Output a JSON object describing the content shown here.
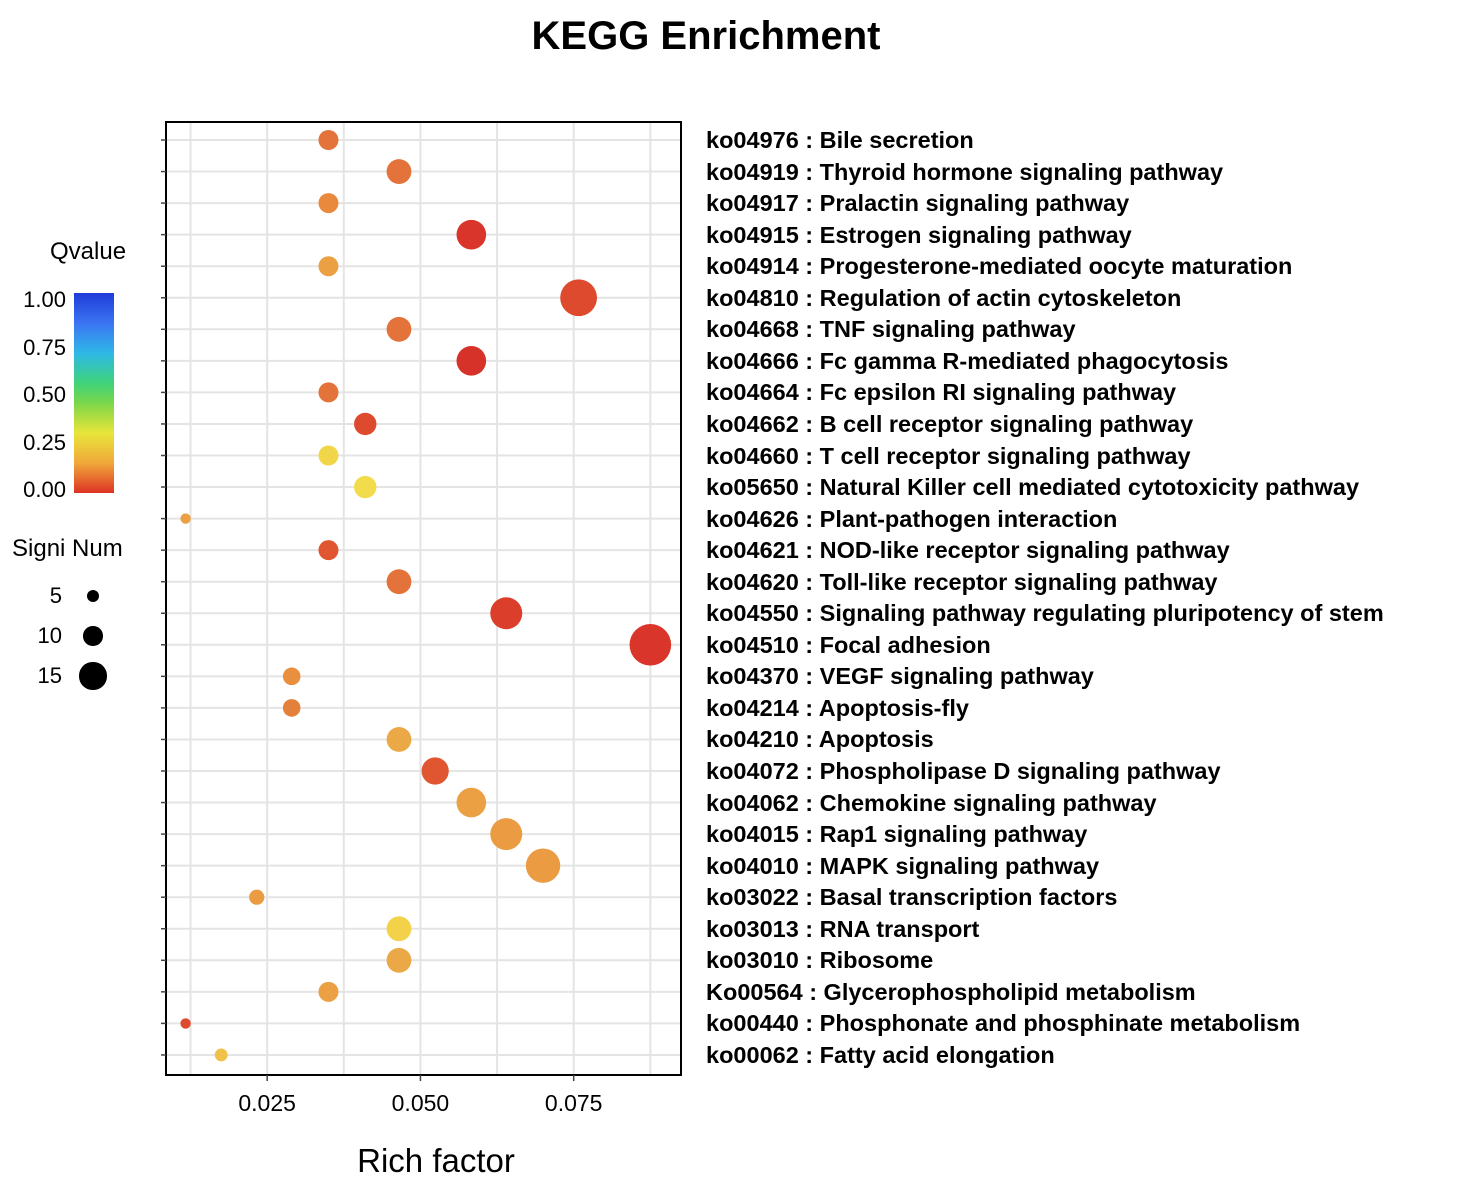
{
  "chart_data": {
    "type": "scatter",
    "title": "KEGG Enrichment",
    "xlabel": "Rich factor",
    "ylabel": "",
    "xlim": [
      0.0085,
      0.0925
    ],
    "xticks": [
      {
        "value": 0.025,
        "label": "0.025"
      },
      {
        "value": 0.05,
        "label": "0.050"
      },
      {
        "value": 0.075,
        "label": "0.075"
      }
    ],
    "grid": true,
    "color_legend": {
      "title": "Qvalue",
      "ticks": [
        "1.00",
        "0.75",
        "0.50",
        "0.25",
        "0.00"
      ],
      "colors": [
        "#1f3bd8",
        "#3b74f2",
        "#2fb8e8",
        "#3fd37a",
        "#7bd64a",
        "#e8e53a",
        "#f0a83a",
        "#dd3325"
      ]
    },
    "size_legend": {
      "title": "Signi Num",
      "entries": [
        {
          "label": "5",
          "value": 5
        },
        {
          "label": "10",
          "value": 10
        },
        {
          "label": "15",
          "value": 15
        }
      ]
    },
    "points": [
      {
        "term": "ko04976 : Bile secretion",
        "x": 0.035,
        "size": 5,
        "color": "#e3733a"
      },
      {
        "term": "ko04919 : Thyroid hormone signaling pathway",
        "x": 0.0465,
        "size": 7,
        "color": "#e3733a"
      },
      {
        "term": "ko04917 : Pralactin signaling pathway",
        "x": 0.035,
        "size": 5,
        "color": "#e8893e"
      },
      {
        "term": "ko04915 : Estrogen signaling pathway",
        "x": 0.0583,
        "size": 9,
        "color": "#d9352a"
      },
      {
        "term": "ko04914 : Progesterone-mediated oocyte maturation",
        "x": 0.035,
        "size": 5,
        "color": "#eba043"
      },
      {
        "term": "ko04810 : Regulation of actin cytoskeleton",
        "x": 0.0758,
        "size": 12,
        "color": "#dd4a2e"
      },
      {
        "term": "ko04668 : TNF signaling pathway",
        "x": 0.0465,
        "size": 7,
        "color": "#e3733a"
      },
      {
        "term": "ko04666 : Fc gamma R-mediated phagocytosis",
        "x": 0.0583,
        "size": 9,
        "color": "#d6322a"
      },
      {
        "term": "ko04664 : Fc epsilon RI signaling pathway",
        "x": 0.035,
        "size": 5,
        "color": "#e3733a"
      },
      {
        "term": "ko04662 : B cell receptor signaling pathway",
        "x": 0.041,
        "size": 6,
        "color": "#dd4a2e"
      },
      {
        "term": "ko04660 : T cell receptor signaling pathway",
        "x": 0.035,
        "size": 5,
        "color": "#f1d64a"
      },
      {
        "term": "ko05650 : Natural Killer cell mediated cytotoxicity pathway",
        "x": 0.041,
        "size": 6,
        "color": "#f3dc4c"
      },
      {
        "term": "ko04626 : Plant-pathogen interaction",
        "x": 0.0117,
        "size": 1,
        "color": "#eba043"
      },
      {
        "term": "ko04621 : NOD-like receptor signaling pathway",
        "x": 0.035,
        "size": 5,
        "color": "#df5630"
      },
      {
        "term": "ko04620 : Toll-like receptor signaling pathway",
        "x": 0.0465,
        "size": 7,
        "color": "#e3733a"
      },
      {
        "term": "ko04550 : Signaling pathway regulating pluripotency of stem",
        "x": 0.064,
        "size": 10,
        "color": "#dc3e2c"
      },
      {
        "term": "ko04510 : Focal adhesion",
        "x": 0.0875,
        "size": 14,
        "color": "#d9352a"
      },
      {
        "term": "ko04370 : VEGF signaling pathway",
        "x": 0.029,
        "size": 4,
        "color": "#e8903e"
      },
      {
        "term": "ko04214 : Apoptosis-fly",
        "x": 0.029,
        "size": 4,
        "color": "#e3803a"
      },
      {
        "term": "ko04210 : Apoptosis",
        "x": 0.0465,
        "size": 7,
        "color": "#eba847"
      },
      {
        "term": "ko04072 : Phospholipase D signaling pathway",
        "x": 0.0524,
        "size": 8,
        "color": "#df5630"
      },
      {
        "term": "ko04062 : Chemokine signaling pathway",
        "x": 0.0583,
        "size": 9,
        "color": "#eba043"
      },
      {
        "term": "ko04015 : Rap1 signaling pathway",
        "x": 0.064,
        "size": 10,
        "color": "#eb9c42"
      },
      {
        "term": "ko04010 : MAPK signaling pathway",
        "x": 0.07,
        "size": 11,
        "color": "#eb9c42"
      },
      {
        "term": "ko03022 : Basal transcription factors",
        "x": 0.0233,
        "size": 3,
        "color": "#eb9c42"
      },
      {
        "term": "ko03013 : RNA transport",
        "x": 0.0465,
        "size": 7,
        "color": "#f3d24a"
      },
      {
        "term": "ko03010 : Ribosome",
        "x": 0.0465,
        "size": 7,
        "color": "#eba847"
      },
      {
        "term": "Ko00564 : Glycerophospholipid metabolism",
        "x": 0.035,
        "size": 5,
        "color": "#eba043"
      },
      {
        "term": "ko00440 : Phosphonate and phosphinate metabolism",
        "x": 0.0117,
        "size": 1,
        "color": "#dd4a2e"
      },
      {
        "term": "ko00062 : Fatty acid elongation",
        "x": 0.0175,
        "size": 2,
        "color": "#f0c24a"
      }
    ]
  }
}
